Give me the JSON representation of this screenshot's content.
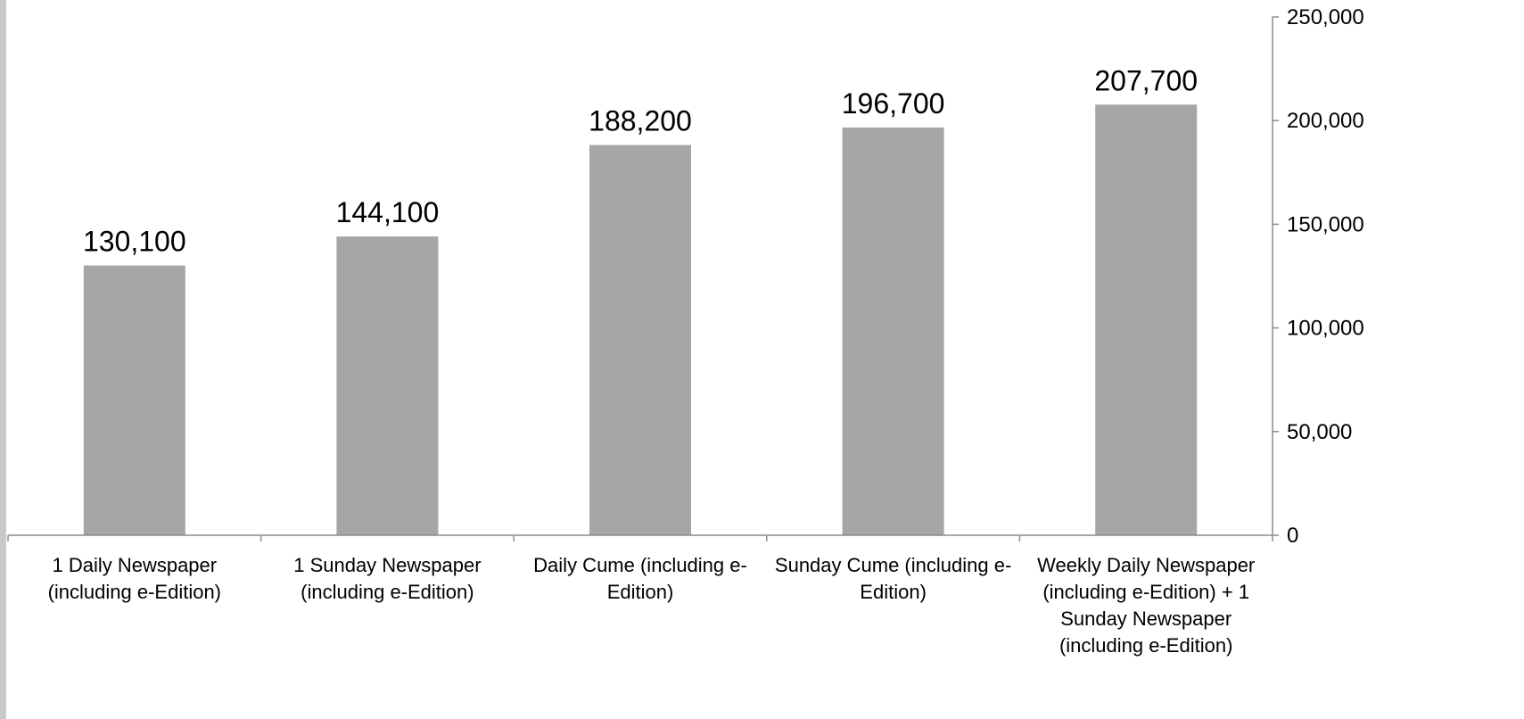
{
  "colors": {
    "bar": "#a6a6a6",
    "axis": "#8c8c8c",
    "left_strip": "#c8c8c8"
  },
  "chart_data": {
    "type": "bar",
    "categories": [
      "1 Daily Newspaper (including e-Edition)",
      "1 Sunday Newspaper (including e-Edition)",
      "Daily Cume (including e-Edition)",
      "Sunday Cume (including e-Edition)",
      "Weekly Daily Newspaper (including e-Edition) + 1 Sunday Newspaper (including e-Edition)"
    ],
    "category_label_lines": [
      [
        "1 Daily Newspaper",
        "(including e-Edition)"
      ],
      [
        "1 Sunday Newspaper",
        "(including e-Edition)"
      ],
      [
        "Daily Cume (including e-",
        "Edition)"
      ],
      [
        "Sunday Cume (including e-",
        "Edition)"
      ],
      [
        "Weekly Daily Newspaper",
        "(including e-Edition) + 1",
        "Sunday Newspaper",
        "(including e-Edition)"
      ]
    ],
    "values": [
      130100,
      144100,
      188200,
      196700,
      207700
    ],
    "data_labels": [
      "130,100",
      "144,100",
      "188,200",
      "196,700",
      "207,700"
    ],
    "ylim": [
      0,
      250000
    ],
    "yticks": [
      0,
      50000,
      100000,
      150000,
      200000,
      250000
    ],
    "ytick_labels": [
      "0",
      "50,000",
      "100,000",
      "150,000",
      "200,000",
      "250,000"
    ],
    "y_axis_side": "right",
    "title": "",
    "xlabel": "",
    "ylabel": "",
    "grid": false,
    "legend": false
  }
}
